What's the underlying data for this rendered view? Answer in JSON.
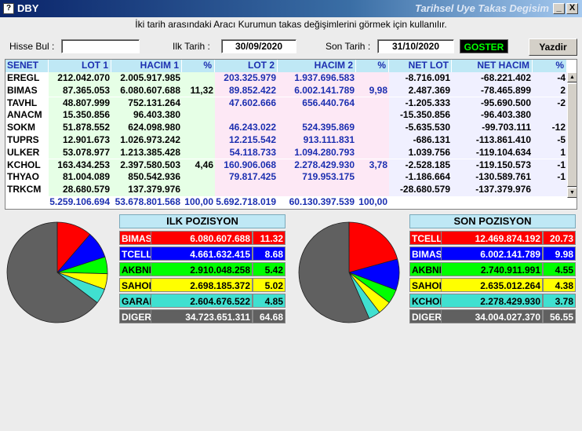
{
  "window": {
    "icon": "?",
    "title": "DBY",
    "subtitle": "Tarihsel Uye Takas Degisim",
    "min_label": "_",
    "close_label": "X"
  },
  "hint": "İki tarih arasındaki  Aracı Kurumun takas değişimlerini görmek için kullanılır.",
  "filters": {
    "hisse_label": "Hisse Bul :",
    "hisse_value": "",
    "ilk_label": "Ilk Tarih :",
    "ilk_value": "30/09/2020",
    "son_label": "Son Tarih :",
    "son_value": "31/10/2020",
    "goster_label": "GOSTER",
    "yazdir_label": "Yazdir"
  },
  "table": {
    "headers": [
      "SENET",
      "LOT 1",
      "HACIM 1",
      "%",
      "LOT 2",
      "HACIM 2",
      "%",
      "NET LOT",
      "NET HACIM",
      "%"
    ],
    "rows": [
      [
        "EREGL",
        "212.042.070",
        "2.005.917.985",
        "",
        "203.325.979",
        "1.937.696.583",
        "",
        "-8.716.091",
        "-68.221.402",
        "-4"
      ],
      [
        "BIMAS",
        "87.365.053",
        "6.080.607.688",
        "11,32",
        "89.852.422",
        "6.002.141.789",
        "9,98",
        "2.487.369",
        "-78.465.899",
        "2"
      ],
      [
        "TAVHL",
        "48.807.999",
        "752.131.264",
        "",
        "47.602.666",
        "656.440.764",
        "",
        "-1.205.333",
        "-95.690.500",
        "-2"
      ],
      [
        "ANACM",
        "15.350.856",
        "96.403.380",
        "",
        "",
        "",
        "",
        "-15.350.856",
        "-96.403.380",
        ""
      ],
      [
        "SOKM",
        "51.878.552",
        "624.098.980",
        "",
        "46.243.022",
        "524.395.869",
        "",
        "-5.635.530",
        "-99.703.111",
        "-12"
      ],
      [
        "TUPRS",
        "12.901.673",
        "1.026.973.242",
        "",
        "12.215.542",
        "913.111.831",
        "",
        "-686.131",
        "-113.861.410",
        "-5"
      ],
      [
        "ULKER",
        "53.078.977",
        "1.213.385.428",
        "",
        "54.118.733",
        "1.094.280.793",
        "",
        "1.039.756",
        "-119.104.634",
        "1"
      ],
      [
        "KCHOL",
        "163.434.253",
        "2.397.580.503",
        "4,46",
        "160.906.068",
        "2.278.429.930",
        "3,78",
        "-2.528.185",
        "-119.150.573",
        "-1"
      ],
      [
        "THYAO",
        "81.004.089",
        "850.542.936",
        "",
        "79.817.425",
        "719.953.175",
        "",
        "-1.186.664",
        "-130.589.761",
        "-1"
      ],
      [
        "TRKCM",
        "28.680.579",
        "137.379.976",
        "",
        "",
        "",
        "",
        "-28.680.579",
        "-137.379.976",
        ""
      ]
    ],
    "totals": [
      "",
      "5.259.106.694",
      "53.678.801.568",
      "100,00",
      "5.692.718.019",
      "60.130.397.539",
      "100,00",
      "",
      "",
      ""
    ]
  },
  "ilk_pozisyon": {
    "title": "ILK POZISYON",
    "rows": [
      {
        "name": "BIMAS",
        "value": "6.080.607.688",
        "pct": "11.32",
        "color": "#ff0000",
        "text": "#ffffff"
      },
      {
        "name": "TCELL",
        "value": "4.661.632.415",
        "pct": "8.68",
        "color": "#0000ff",
        "text": "#ffffff"
      },
      {
        "name": "AKBNK",
        "value": "2.910.048.258",
        "pct": "5.42",
        "color": "#00ff00",
        "text": "#000000"
      },
      {
        "name": "SAHOL",
        "value": "2.698.185.372",
        "pct": "5.02",
        "color": "#ffff00",
        "text": "#000000"
      },
      {
        "name": "GARAN",
        "value": "2.604.676.522",
        "pct": "4.85",
        "color": "#40e0d0",
        "text": "#000000"
      },
      {
        "name": "DIGER",
        "value": "34.723.651.311",
        "pct": "64.68",
        "color": "#606060",
        "text": "#ffffff"
      }
    ]
  },
  "son_pozisyon": {
    "title": "SON POZISYON",
    "rows": [
      {
        "name": "TCELL",
        "value": "12.469.874.192",
        "pct": "20.73",
        "color": "#ff0000",
        "text": "#ffffff"
      },
      {
        "name": "BIMAS",
        "value": "6.002.141.789",
        "pct": "9.98",
        "color": "#0000ff",
        "text": "#ffffff"
      },
      {
        "name": "AKBNK",
        "value": "2.740.911.991",
        "pct": "4.55",
        "color": "#00ff00",
        "text": "#000000"
      },
      {
        "name": "SAHOL",
        "value": "2.635.012.264",
        "pct": "4.38",
        "color": "#ffff00",
        "text": "#000000"
      },
      {
        "name": "KCHOL",
        "value": "2.278.429.930",
        "pct": "3.78",
        "color": "#40e0d0",
        "text": "#000000"
      },
      {
        "name": "DIGER",
        "value": "34.004.027.370",
        "pct": "56.55",
        "color": "#606060",
        "text": "#ffffff"
      }
    ]
  }
}
